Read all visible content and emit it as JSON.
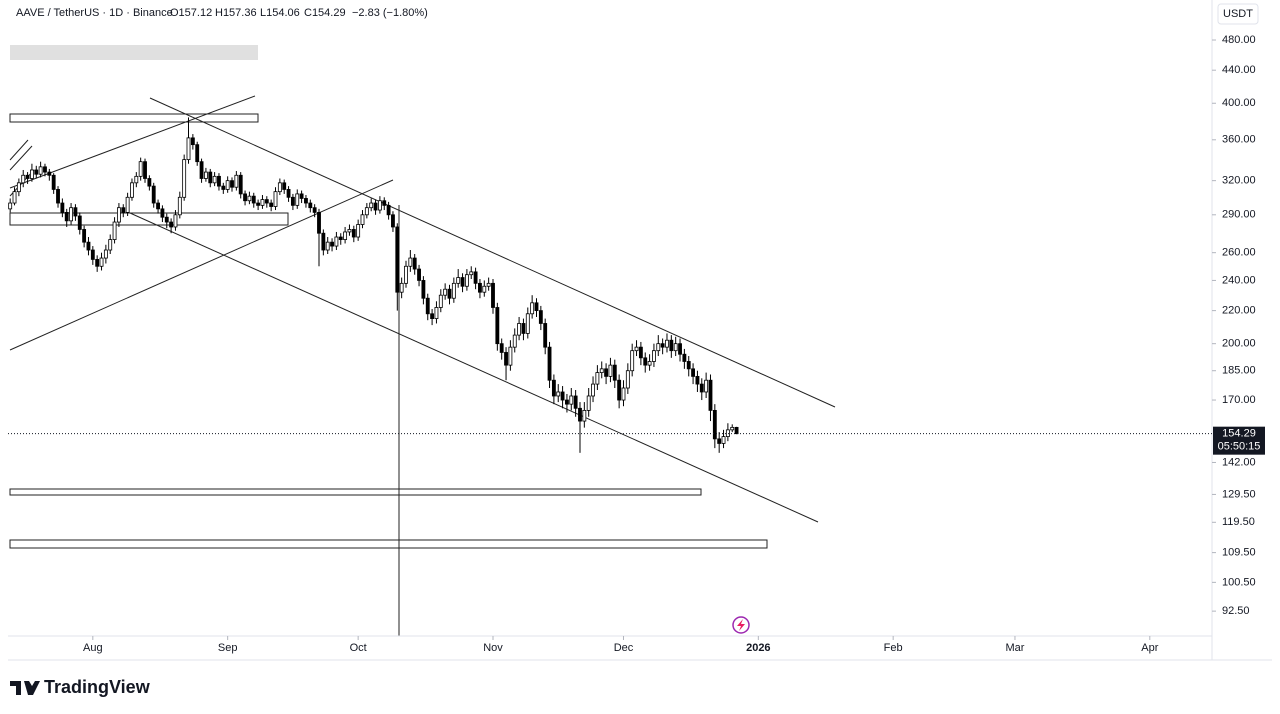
{
  "header": {
    "symbol": "AAVE / TetherUS · 1D · Binance",
    "ohlc": [
      "O157.12",
      "H157.36",
      "L154.06",
      "C154.29"
    ],
    "change": "−2.83 (−1.80%)"
  },
  "chart_data": {
    "type": "candlestick",
    "currency": "USDT",
    "log_scale": true,
    "grid": false,
    "ylim": [
      86.1,
      538.7
    ],
    "yticks": [
      {
        "value": 480,
        "label": "480.00"
      },
      {
        "value": 440,
        "label": "440.00"
      },
      {
        "value": 400,
        "label": "400.00"
      },
      {
        "value": 360,
        "label": "360.00"
      },
      {
        "value": 320,
        "label": "320.00"
      },
      {
        "value": 290,
        "label": "290.00"
      },
      {
        "value": 260,
        "label": "260.00"
      },
      {
        "value": 240,
        "label": "240.00"
      },
      {
        "value": 220,
        "label": "220.00"
      },
      {
        "value": 200,
        "label": "200.00"
      },
      {
        "value": 185,
        "label": "185.00"
      },
      {
        "value": 170,
        "label": "170.00"
      },
      {
        "value": 142,
        "label": "142.00"
      },
      {
        "value": 129.5,
        "label": "129.50"
      },
      {
        "value": 119.5,
        "label": "119.50"
      },
      {
        "value": 109.5,
        "label": "109.50"
      },
      {
        "value": 100.5,
        "label": "100.50"
      },
      {
        "value": 92.5,
        "label": "92.50"
      }
    ],
    "xlim": [
      -0.5,
      276.3
    ],
    "xticks": [
      {
        "value": 19,
        "label": "Aug"
      },
      {
        "value": 50,
        "label": "Sep"
      },
      {
        "value": 80,
        "label": "Oct"
      },
      {
        "value": 111,
        "label": "Nov"
      },
      {
        "value": 141,
        "label": "Dec"
      },
      {
        "value": 172,
        "label": "2026"
      },
      {
        "value": 203,
        "label": "Feb"
      },
      {
        "value": 231,
        "label": "Mar"
      },
      {
        "value": 262,
        "label": "Apr"
      }
    ],
    "last_price": 154.29,
    "countdown": "05:50:15",
    "series": [
      {
        "up_color": "#ffffff",
        "down_color": "#000000",
        "border_color": "#000000",
        "ohlc": [
          [
            295,
            304,
            292,
            300
          ],
          [
            300,
            314,
            298,
            310
          ],
          [
            310,
            322,
            306,
            318
          ],
          [
            318,
            330,
            314,
            325
          ],
          [
            325,
            328,
            317,
            322
          ],
          [
            322,
            336,
            319,
            330
          ],
          [
            330,
            334,
            322,
            326
          ],
          [
            326,
            338,
            323,
            333
          ],
          [
            333,
            336,
            324,
            328
          ],
          [
            328,
            331,
            320,
            325
          ],
          [
            325,
            327,
            308,
            312
          ],
          [
            312,
            315,
            296,
            300
          ],
          [
            300,
            304,
            288,
            292
          ],
          [
            292,
            295,
            280,
            285
          ],
          [
            285,
            300,
            282,
            296
          ],
          [
            296,
            299,
            285,
            289
          ],
          [
            289,
            292,
            274,
            278
          ],
          [
            278,
            281,
            264,
            268
          ],
          [
            268,
            272,
            258,
            262
          ],
          [
            262,
            265,
            251,
            255
          ],
          [
            255,
            258,
            246,
            250
          ],
          [
            250,
            260,
            247,
            256
          ],
          [
            256,
            266,
            252,
            262
          ],
          [
            262,
            274,
            259,
            270
          ],
          [
            270,
            288,
            267,
            284
          ],
          [
            284,
            300,
            280,
            296
          ],
          [
            296,
            299,
            288,
            292
          ],
          [
            292,
            309,
            289,
            305
          ],
          [
            305,
            322,
            302,
            318
          ],
          [
            318,
            328,
            314,
            324
          ],
          [
            324,
            342,
            320,
            338
          ],
          [
            338,
            341,
            318,
            322
          ],
          [
            322,
            325,
            311,
            315
          ],
          [
            315,
            318,
            296,
            300
          ],
          [
            300,
            303,
            291,
            295
          ],
          [
            295,
            298,
            284,
            288
          ],
          [
            288,
            291,
            279,
            284
          ],
          [
            284,
            287,
            275,
            280
          ],
          [
            280,
            294,
            277,
            290
          ],
          [
            290,
            310,
            287,
            305
          ],
          [
            305,
            345,
            302,
            340
          ],
          [
            340,
            384,
            336,
            362
          ],
          [
            362,
            366,
            350,
            355
          ],
          [
            355,
            358,
            334,
            338
          ],
          [
            338,
            341,
            318,
            322
          ],
          [
            322,
            332,
            319,
            328
          ],
          [
            328,
            331,
            314,
            318
          ],
          [
            318,
            328,
            315,
            324
          ],
          [
            324,
            327,
            311,
            315
          ],
          [
            315,
            318,
            308,
            312
          ],
          [
            312,
            324,
            309,
            320
          ],
          [
            320,
            323,
            310,
            314
          ],
          [
            314,
            329,
            311,
            325
          ],
          [
            325,
            328,
            304,
            308
          ],
          [
            308,
            311,
            298,
            302
          ],
          [
            302,
            310,
            299,
            306
          ],
          [
            306,
            309,
            296,
            300
          ],
          [
            300,
            303,
            294,
            298
          ],
          [
            298,
            307,
            295,
            303
          ],
          [
            303,
            306,
            296,
            300
          ],
          [
            300,
            303,
            293,
            297
          ],
          [
            297,
            314,
            294,
            310
          ],
          [
            310,
            322,
            307,
            318
          ],
          [
            318,
            321,
            308,
            312
          ],
          [
            312,
            315,
            301,
            305
          ],
          [
            305,
            308,
            294,
            298
          ],
          [
            298,
            312,
            295,
            308
          ],
          [
            308,
            311,
            300,
            304
          ],
          [
            304,
            307,
            296,
            300
          ],
          [
            300,
            303,
            292,
            296
          ],
          [
            296,
            299,
            288,
            292
          ],
          [
            292,
            295,
            250,
            275
          ],
          [
            275,
            278,
            258,
            262
          ],
          [
            262,
            272,
            259,
            268
          ],
          [
            268,
            271,
            261,
            265
          ],
          [
            265,
            276,
            262,
            272
          ],
          [
            272,
            275,
            266,
            270
          ],
          [
            270,
            280,
            267,
            276
          ],
          [
            276,
            282,
            273,
            278
          ],
          [
            278,
            281,
            268,
            272
          ],
          [
            272,
            286,
            269,
            282
          ],
          [
            282,
            294,
            279,
            290
          ],
          [
            290,
            300,
            287,
            296
          ],
          [
            296,
            304,
            293,
            300
          ],
          [
            300,
            303,
            290,
            294
          ],
          [
            294,
            306,
            291,
            302
          ],
          [
            302,
            305,
            294,
            298
          ],
          [
            298,
            301,
            286,
            290
          ],
          [
            290,
            293,
            276,
            280
          ],
          [
            280,
            283,
            220,
            232
          ],
          [
            232,
            242,
            228,
            238
          ],
          [
            238,
            254,
            235,
            250
          ],
          [
            250,
            262,
            246,
            256
          ],
          [
            256,
            259,
            244,
            248
          ],
          [
            248,
            251,
            236,
            240
          ],
          [
            240,
            243,
            224,
            228
          ],
          [
            228,
            231,
            214,
            218
          ],
          [
            218,
            221,
            211,
            215
          ],
          [
            215,
            226,
            212,
            222
          ],
          [
            222,
            234,
            219,
            230
          ],
          [
            230,
            238,
            227,
            234
          ],
          [
            234,
            237,
            224,
            228
          ],
          [
            228,
            242,
            225,
            238
          ],
          [
            238,
            248,
            235,
            242
          ],
          [
            242,
            245,
            232,
            236
          ],
          [
            236,
            248,
            233,
            244
          ],
          [
            244,
            250,
            241,
            246
          ],
          [
            246,
            249,
            234,
            238
          ],
          [
            238,
            241,
            228,
            232
          ],
          [
            232,
            240,
            229,
            236
          ],
          [
            236,
            242,
            233,
            238
          ],
          [
            238,
            241,
            218,
            222
          ],
          [
            222,
            225,
            196,
            200
          ],
          [
            200,
            203,
            191,
            195
          ],
          [
            195,
            198,
            180,
            188
          ],
          [
            188,
            202,
            185,
            198
          ],
          [
            198,
            209,
            195,
            205
          ],
          [
            205,
            216,
            202,
            212
          ],
          [
            212,
            215,
            202,
            206
          ],
          [
            206,
            222,
            203,
            218
          ],
          [
            218,
            230,
            215,
            225
          ],
          [
            225,
            228,
            216,
            220
          ],
          [
            220,
            223,
            208,
            212
          ],
          [
            212,
            215,
            194,
            198
          ],
          [
            198,
            201,
            176,
            180
          ],
          [
            180,
            183,
            168,
            172
          ],
          [
            172,
            178,
            169,
            174
          ],
          [
            174,
            177,
            166,
            170
          ],
          [
            170,
            173,
            164,
            168
          ],
          [
            168,
            176,
            165,
            172
          ],
          [
            172,
            175,
            162,
            166
          ],
          [
            166,
            169,
            146,
            160
          ],
          [
            160,
            169,
            157,
            165
          ],
          [
            165,
            176,
            162,
            172
          ],
          [
            172,
            182,
            169,
            178
          ],
          [
            178,
            188,
            175,
            184
          ],
          [
            184,
            190,
            181,
            186
          ],
          [
            186,
            189,
            178,
            182
          ],
          [
            182,
            192,
            179,
            188
          ],
          [
            188,
            191,
            176,
            180
          ],
          [
            180,
            183,
            166,
            170
          ],
          [
            170,
            180,
            167,
            176
          ],
          [
            176,
            189,
            173,
            185
          ],
          [
            185,
            200,
            182,
            196
          ],
          [
            196,
            202,
            193,
            198
          ],
          [
            198,
            201,
            188,
            192
          ],
          [
            192,
            195,
            184,
            188
          ],
          [
            188,
            194,
            185,
            190
          ],
          [
            190,
            200,
            187,
            196
          ],
          [
            196,
            205,
            193,
            200
          ],
          [
            200,
            203,
            194,
            198
          ],
          [
            198,
            206,
            195,
            202
          ],
          [
            202,
            205,
            192,
            196
          ],
          [
            196,
            204,
            193,
            200
          ],
          [
            200,
            203,
            190,
            194
          ],
          [
            194,
            197,
            186,
            190
          ],
          [
            190,
            193,
            182,
            186
          ],
          [
            186,
            189,
            178,
            182
          ],
          [
            182,
            185,
            174,
            178
          ],
          [
            178,
            181,
            170,
            174
          ],
          [
            174,
            184,
            171,
            180
          ],
          [
            180,
            183,
            160,
            165
          ],
          [
            165,
            168,
            148,
            152
          ],
          [
            152,
            155,
            146,
            150
          ],
          [
            150,
            156,
            148,
            153
          ],
          [
            153,
            159,
            151,
            156
          ],
          [
            156,
            158.5,
            155,
            157.12
          ],
          [
            157.12,
            157.36,
            154.06,
            154.29
          ]
        ]
      }
    ]
  },
  "footer": {
    "brand": "TradingView"
  }
}
